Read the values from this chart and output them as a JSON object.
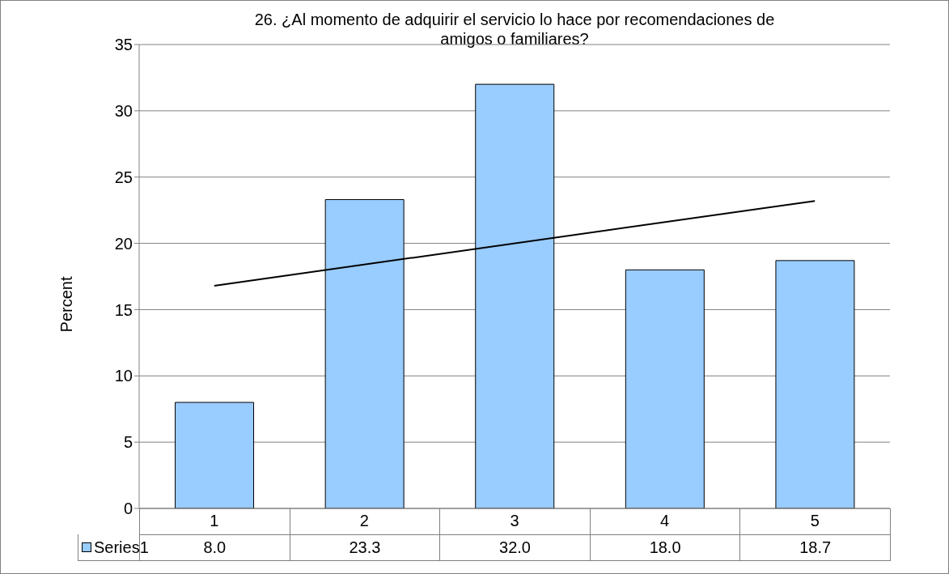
{
  "chart_data": {
    "type": "bar",
    "title": "26. ¿Al momento de adquirir el servicio lo hace por recomendaciones de amigos o familiares?",
    "ylabel": "Percent",
    "categories": [
      "1",
      "2",
      "3",
      "4",
      "5"
    ],
    "series": [
      {
        "name": "Series1",
        "color": "#99ccff",
        "values": [
          8.0,
          23.3,
          32.0,
          18.0,
          18.7
        ],
        "value_labels": [
          "8.0",
          "23.3",
          "32.0",
          "18.0",
          "18.7"
        ]
      },
      {
        "type": "line",
        "color": "#000000",
        "x": [
          "1",
          "5"
        ],
        "values": [
          16.8,
          23.2
        ]
      }
    ],
    "ylim": [
      0,
      35
    ],
    "yticks": [
      0,
      5,
      10,
      15,
      20,
      25,
      30,
      35
    ],
    "grid": "y",
    "legend": "bottom",
    "marker": "none"
  }
}
